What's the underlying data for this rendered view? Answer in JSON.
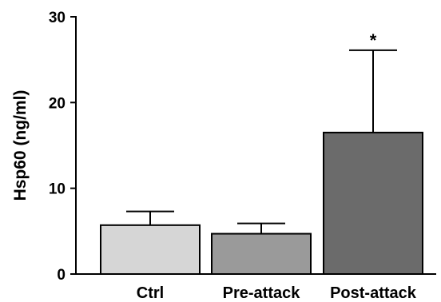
{
  "chart_data": {
    "type": "bar",
    "categories": [
      "Ctrl",
      "Pre-attack",
      "Post-attack"
    ],
    "values": [
      5.7,
      4.7,
      16.5
    ],
    "error_upper": [
      7.3,
      5.9,
      26.1
    ],
    "colors": [
      "#d6d6d6",
      "#9a9a9a",
      "#6b6b6b"
    ],
    "ylabel": "Hsp60 (ng/ml)",
    "ylim": [
      0,
      30
    ],
    "yticks": [
      "0",
      "10",
      "20",
      "30"
    ],
    "annotations": [
      {
        "category_index": 2,
        "text": "*"
      }
    ],
    "grid": false,
    "legend": "none"
  }
}
